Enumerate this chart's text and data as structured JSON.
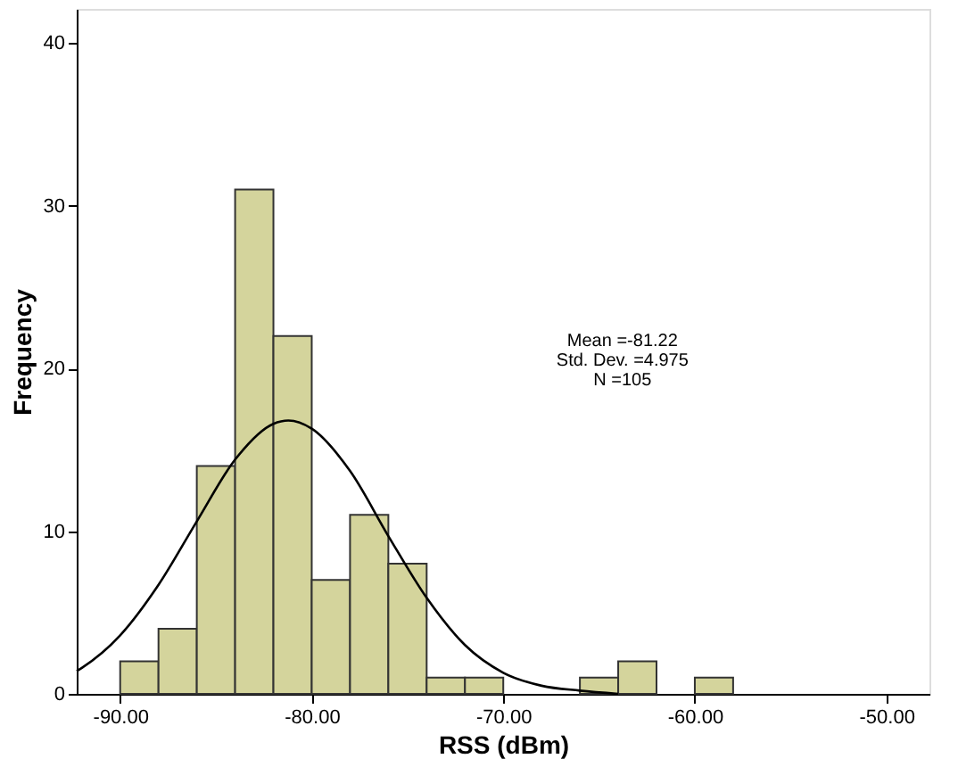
{
  "chart_data": {
    "type": "histogram",
    "xlabel": "RSS (dBm)",
    "ylabel": "Frequency",
    "bins": [
      -90,
      -88,
      -86,
      -84,
      -82,
      -80,
      -78,
      -76,
      -74,
      -72,
      -70,
      -68,
      -66,
      -64,
      -62,
      -60,
      -58
    ],
    "values": [
      2,
      4,
      14,
      31,
      22,
      7,
      11,
      8,
      1,
      1,
      0,
      0,
      1,
      2,
      0,
      1
    ],
    "color": "#d4d49c",
    "series": [
      {
        "type": "line",
        "color": "#000000",
        "x": [
          -92.27,
          -92,
          -90,
          -88,
          -86,
          -84,
          -82,
          -81.22,
          -80,
          -78,
          -76,
          -74,
          -72,
          -70,
          -68,
          -66,
          -64
        ],
        "values": [
          1.4,
          1.6,
          3.6,
          6.7,
          10.6,
          14.4,
          16.6,
          16.8,
          16.3,
          13.7,
          9.7,
          5.9,
          3.0,
          1.3,
          0.5,
          0.2,
          0.0
        ]
      }
    ],
    "xlim": [
      -92.27,
      -47.75
    ],
    "ylim": [
      0,
      42.1
    ],
    "xticks": [
      {
        "value": -90,
        "label": "-90.00"
      },
      {
        "value": -80,
        "label": "-80.00"
      },
      {
        "value": -70,
        "label": "-70.00"
      },
      {
        "value": -60,
        "label": "-60.00"
      },
      {
        "value": -50,
        "label": "-50.00"
      }
    ],
    "yticks": [
      0,
      10,
      20,
      30,
      40
    ],
    "grid": false,
    "annotations": [
      "Mean =-81.22",
      "Std. Dev. =4.975",
      "N =105"
    ]
  }
}
